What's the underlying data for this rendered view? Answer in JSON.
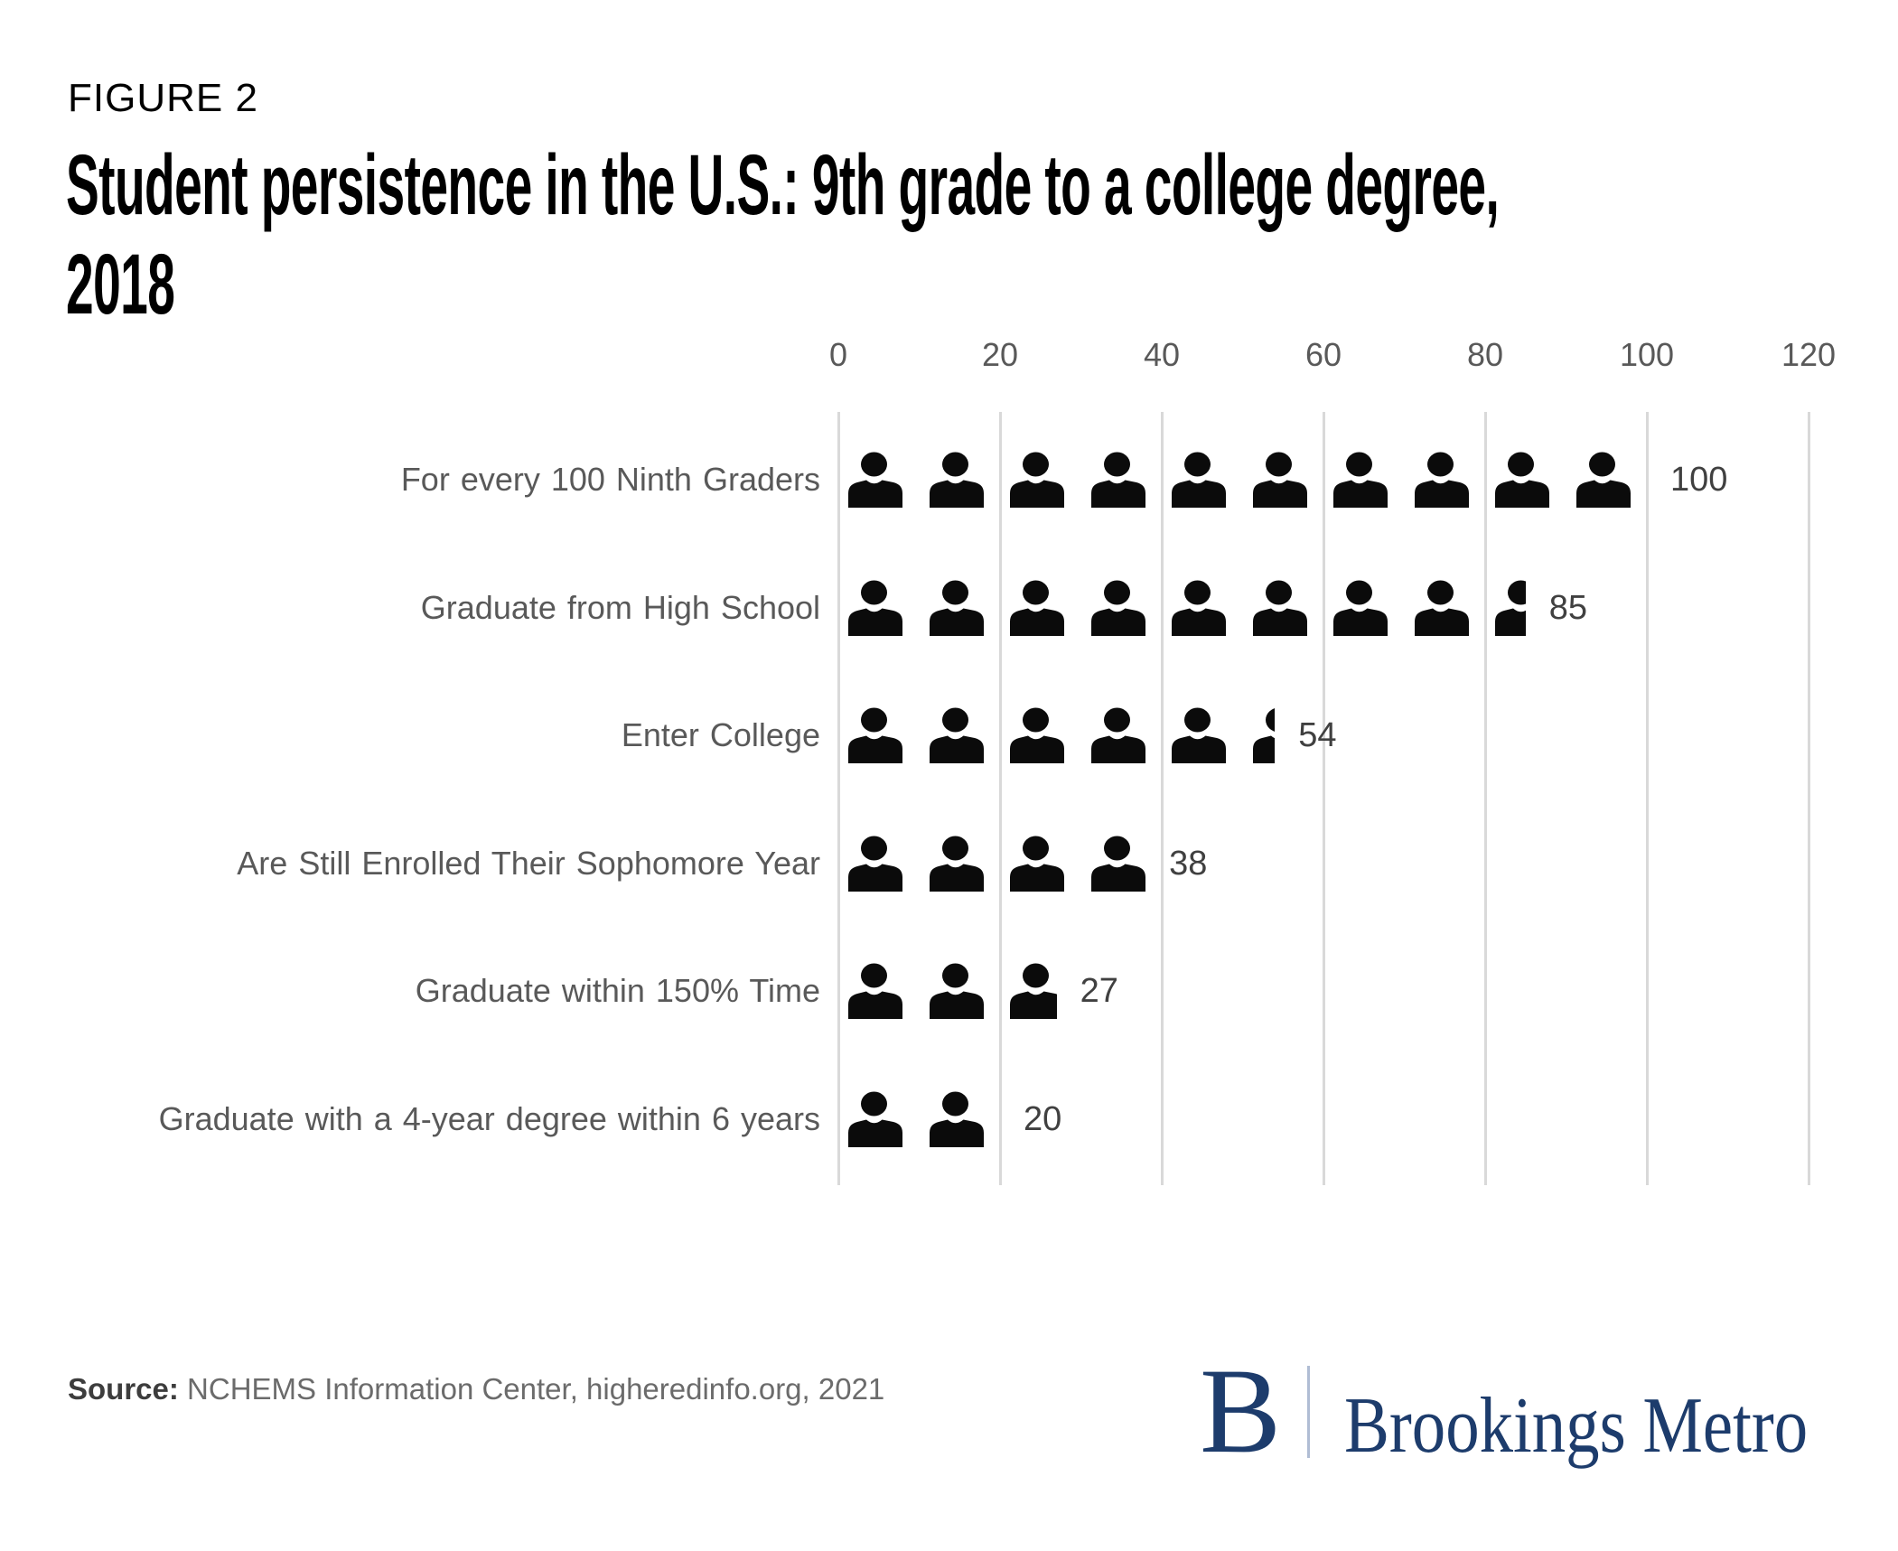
{
  "figure_label": "FIGURE 2",
  "title": {
    "lines": [
      "Student persistence in the U.S.: 9th grade to a college degree,",
      "2018"
    ]
  },
  "source": {
    "label": "Source:",
    "text": " NCHEMS Information Center, higheredinfo.org, 2021"
  },
  "logo": {
    "initial": "B",
    "wordmark": "Brookings Metro"
  },
  "chart_data": {
    "type": "pictogram-bar",
    "title": "Student persistence in the U.S.: 9th grade to a college degree, 2018",
    "icon": "person-icon",
    "persons_per_icon": 10,
    "categories": [
      "For every 100 Ninth Graders",
      "Graduate from High School",
      "Enter College",
      "Are Still Enrolled Their Sophomore Year",
      "Graduate within 150% Time",
      "Graduate with a 4-year degree within 6 years"
    ],
    "values": [
      100,
      85,
      54,
      38,
      27,
      20
    ],
    "value_labels": [
      "100",
      "85",
      "54",
      "38",
      "27",
      "20"
    ],
    "x_ticks": [
      "0",
      "20",
      "40",
      "60",
      "80",
      "100",
      "120"
    ],
    "xlim": [
      0,
      120
    ],
    "grid": true,
    "legend": false,
    "colors": {
      "icon": "#0b0b0b",
      "gridline": "#d9d9d9",
      "tick_label": "#595959",
      "category_label": "#595959",
      "value_label": "#404040",
      "title": "#000000",
      "source_label": "#3d3d3d",
      "source_text": "#6b6b6b",
      "logo_navy": "#1d3c6c",
      "logo_divider": "#b0bdd4"
    }
  }
}
